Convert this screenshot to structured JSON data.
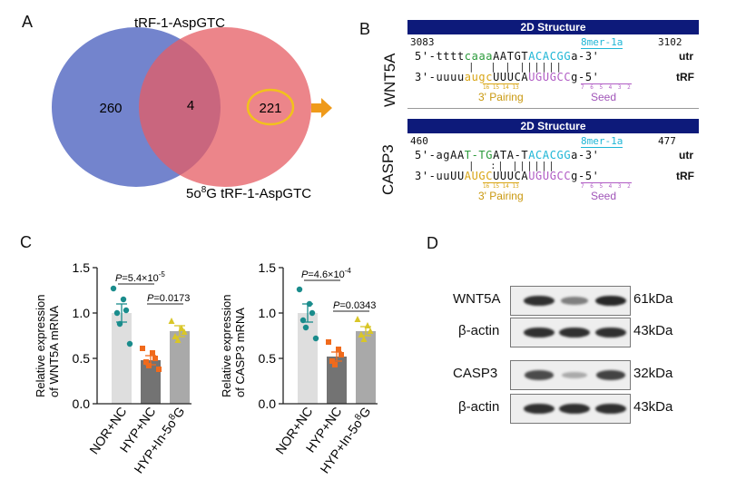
{
  "panels": {
    "A": "A",
    "B": "B",
    "C": "C",
    "D": "D"
  },
  "venn": {
    "top_label": "tRF-1-AspGTC",
    "bottom_label_pre": "5o",
    "bottom_label_sup": "8",
    "bottom_label_post": "G tRF-1-AspGTC",
    "left_count": "260",
    "overlap_count": "4",
    "right_count": "221",
    "left_color": "#5b6fc4",
    "right_color": "#e65c63",
    "highlight_color": "#f2c21b",
    "arrow_color": "#ef9a1a"
  },
  "structures": [
    {
      "gene": "WNT5A",
      "title": "2D Structure",
      "start": "3083",
      "end": "3102",
      "site": "8mer-1a",
      "utr_prefix": "5'-",
      "utr_lower": "tttt",
      "utr_green": "caaa",
      "utr_mid": "AATGT",
      "utr_site": "ACACGG",
      "utr_suffix": "a-3'",
      "utr_tag": "utr",
      "bonds": "  |  | | ||||||",
      "trf_prefix": "3'-uuuu",
      "trf_orange": "augc",
      "trf_mid": "UUUCA",
      "trf_seed": "UGUGCC",
      "trf_suffix": "g-5'",
      "trf_tag": "tRF",
      "pair_nums": "16 15 14 13",
      "seed_nums": "7 6 5 4 3 2",
      "pairing_label": "3' Pairing",
      "seed_label": "Seed"
    },
    {
      "gene": "CASP3",
      "title": "2D Structure",
      "start": "460",
      "end": "477",
      "site": "8mer-1a",
      "utr_prefix": "5'-agAA",
      "utr_lower": "",
      "utr_green": "T-TG",
      "utr_mid": "ATA-T",
      "utr_site": "ACACGG",
      "utr_suffix": "a-3'",
      "utr_tag": "utr",
      "bonds": "  |  :| ||||||",
      "trf_prefix": "3'-uuUU",
      "trf_orange": "AUGC",
      "trf_mid": "UUUCA",
      "trf_seed": "UGUGCC",
      "trf_suffix": "g-5'",
      "trf_tag": "tRF",
      "pair_nums": "16 15 14 13",
      "seed_nums": "7 6 5 4 3 2",
      "pairing_label": "3' Pairing",
      "seed_label": "Seed"
    }
  ],
  "chart_data": [
    {
      "type": "bar",
      "ylabel_line1": "Relative expression",
      "ylabel_line2": "of WNT5A mRNA",
      "categories": [
        "NOR+NC",
        "HYP+NC",
        "HYP+In-5o8G"
      ],
      "category_parts": [
        [
          "NOR+NC",
          "",
          ""
        ],
        [
          "HYP+NC",
          "",
          ""
        ],
        [
          "HYP+In-5o",
          "8",
          "G"
        ]
      ],
      "values": [
        1.0,
        0.48,
        0.8
      ],
      "errors": [
        0.1,
        0.05,
        0.06
      ],
      "points": [
        [
          1.27,
          1.15,
          1.03,
          1.0,
          0.88,
          0.66
        ],
        [
          0.61,
          0.56,
          0.5,
          0.46,
          0.42,
          0.38
        ],
        [
          0.91,
          0.83,
          0.79,
          0.74,
          0.7
        ]
      ],
      "bar_colors": [
        "#dedede",
        "#737373",
        "#a9a9a9"
      ],
      "point_colors": [
        "#1a8c8c",
        "#f06a1c",
        "#d9c628"
      ],
      "ylim": [
        0,
        1.5
      ],
      "yticks": [
        "0.0",
        "0.5",
        "1.0",
        "1.5"
      ],
      "comparisons": [
        {
          "from": 0,
          "to": 1,
          "y": 1.32,
          "p_prefix": "P",
          "text": "=5.4×10",
          "sup": "-5"
        },
        {
          "from": 1,
          "to": 2,
          "y": 1.1,
          "p_prefix": "P",
          "text": "=0.0173",
          "sup": ""
        }
      ]
    },
    {
      "type": "bar",
      "ylabel_line1": "Relative expression",
      "ylabel_line2": "of CASP3 mRNA",
      "categories": [
        "NOR+NC",
        "HYP+NC",
        "HYP+In-5o8G"
      ],
      "category_parts": [
        [
          "NOR+NC",
          "",
          ""
        ],
        [
          "HYP+NC",
          "",
          ""
        ],
        [
          "HYP+In-5o",
          "8",
          "G"
        ]
      ],
      "values": [
        1.0,
        0.52,
        0.8
      ],
      "errors": [
        0.1,
        0.05,
        0.05
      ],
      "points": [
        [
          1.26,
          1.1,
          1.0,
          0.92,
          0.84,
          0.72
        ],
        [
          0.68,
          0.6,
          0.54,
          0.47,
          0.43
        ],
        [
          0.93,
          0.86,
          0.8,
          0.76,
          0.71
        ]
      ],
      "bar_colors": [
        "#dedede",
        "#737373",
        "#a9a9a9"
      ],
      "point_colors": [
        "#1a8c8c",
        "#f06a1c",
        "#d9c628"
      ],
      "ylim": [
        0,
        1.5
      ],
      "yticks": [
        "0.0",
        "0.5",
        "1.0",
        "1.5"
      ],
      "comparisons": [
        {
          "from": 0,
          "to": 1,
          "y": 1.36,
          "p_prefix": "P",
          "text": "=4.6×10",
          "sup": "-4"
        },
        {
          "from": 1,
          "to": 2,
          "y": 1.02,
          "p_prefix": "P",
          "text": "=0.0343",
          "sup": ""
        }
      ]
    }
  ],
  "blots": [
    {
      "label": "WNT5A",
      "size": "61kDa",
      "intensity": [
        0.9,
        0.45,
        0.95
      ]
    },
    {
      "label": "β-actin",
      "size": "43kDa",
      "intensity": [
        0.9,
        0.9,
        0.9
      ]
    },
    {
      "label": "CASP3",
      "size": "32kDa",
      "intensity": [
        0.75,
        0.2,
        0.8
      ]
    },
    {
      "label": "β-actin",
      "size": "43kDa",
      "intensity": [
        0.9,
        0.9,
        0.9
      ]
    }
  ]
}
